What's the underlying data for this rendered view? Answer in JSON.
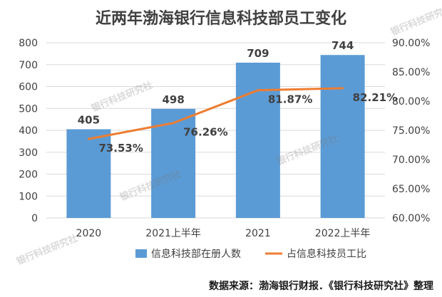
{
  "colors": {
    "bar": "#5b9bd5",
    "line": "#ed7d31",
    "axis_text": "#404040",
    "grid": "#d9d9d9"
  },
  "watermark": "银行科技研究社",
  "source_note": "数据来源：渤海银行财报．《银行科技研究社》整理",
  "chart_data": {
    "type": "bar",
    "title": "近两年渤海银行信息科技部员工变化",
    "categories": [
      "2020",
      "2021上半年",
      "2021",
      "2022上半年"
    ],
    "series": [
      {
        "name": "信息科技部在册人数",
        "kind": "bar",
        "axis": "left",
        "values": [
          405,
          498,
          709,
          744
        ],
        "labels": [
          "405",
          "498",
          "709",
          "744"
        ]
      },
      {
        "name": "占信息科技员工比",
        "kind": "line",
        "axis": "right",
        "values": [
          73.53,
          76.26,
          81.87,
          82.21
        ],
        "labels": [
          "73.53%",
          "76.26%",
          "81.87%",
          "82.21%"
        ]
      }
    ],
    "left_axis": {
      "min": 0,
      "max": 800,
      "ticks": [
        "0",
        "100",
        "200",
        "300",
        "400",
        "500",
        "600",
        "700",
        "800"
      ]
    },
    "right_axis": {
      "min": 60,
      "max": 90,
      "ticks": [
        "60.00%",
        "65.00%",
        "70.00%",
        "75.00%",
        "80.00%",
        "85.00%",
        "90.00%"
      ]
    },
    "grid": true,
    "legend_position": "bottom"
  }
}
